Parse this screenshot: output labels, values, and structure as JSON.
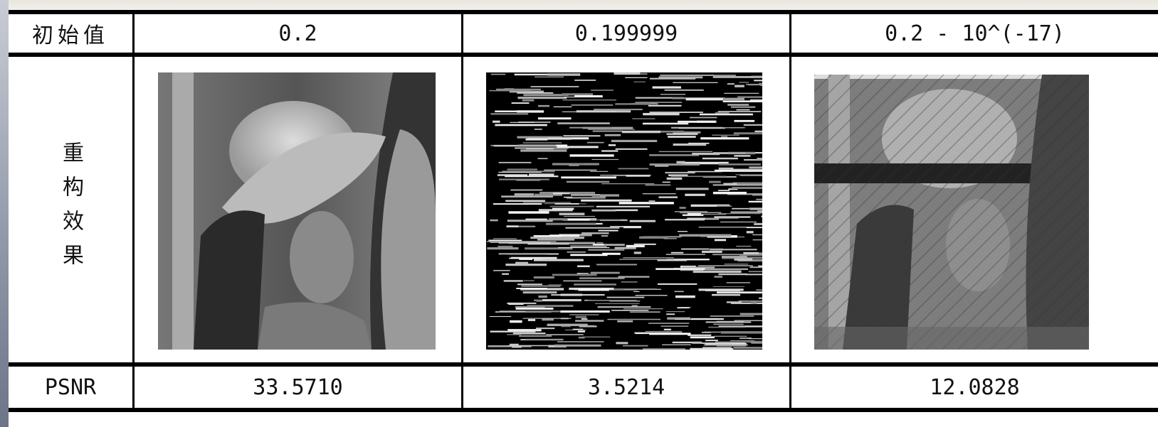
{
  "table": {
    "header": [
      "初始值",
      "0.2",
      "0.199999",
      "0.2 - 10^(-17)"
    ],
    "rows": [
      [
        "重构效果"
      ],
      [
        "PSNR",
        "33.5710",
        "3.5214",
        "12.0828"
      ]
    ]
  }
}
